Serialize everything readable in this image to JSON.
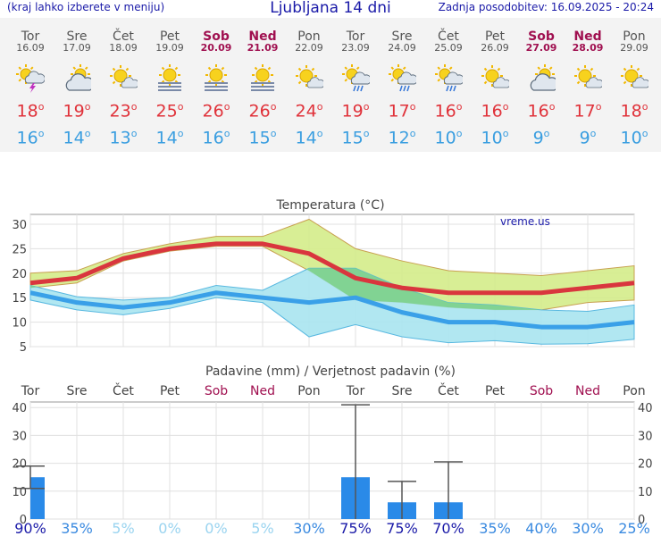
{
  "header": {
    "menu_note": "(kraj lahko izberete v meniju)",
    "title": "Ljubljana 14 dni",
    "updated": "Zadnja posodobitev: 16.09.2025 - 20:24"
  },
  "forecast": [
    {
      "day": "Tor",
      "date": "16.09",
      "weekend": false,
      "icon": "sun-cloud-storm-icon",
      "tmax": "18",
      "tmin": "16"
    },
    {
      "day": "Sre",
      "date": "17.09",
      "weekend": false,
      "icon": "cloudy-icon",
      "tmax": "19",
      "tmin": "14"
    },
    {
      "day": "Čet",
      "date": "18.09",
      "weekend": false,
      "icon": "partly-cloudy-icon",
      "tmax": "23",
      "tmin": "13"
    },
    {
      "day": "Pet",
      "date": "19.09",
      "weekend": false,
      "icon": "sun-fog-icon",
      "tmax": "25",
      "tmin": "14"
    },
    {
      "day": "Sob",
      "date": "20.09",
      "weekend": true,
      "icon": "sun-fog-icon",
      "tmax": "26",
      "tmin": "16"
    },
    {
      "day": "Ned",
      "date": "21.09",
      "weekend": true,
      "icon": "sun-fog-icon",
      "tmax": "26",
      "tmin": "15"
    },
    {
      "day": "Pon",
      "date": "22.09",
      "weekend": false,
      "icon": "partly-cloudy-icon",
      "tmax": "24",
      "tmin": "14"
    },
    {
      "day": "Tor",
      "date": "23.09",
      "weekend": false,
      "icon": "sun-cloud-rain-icon",
      "tmax": "19",
      "tmin": "15"
    },
    {
      "day": "Sre",
      "date": "24.09",
      "weekend": false,
      "icon": "sun-cloud-rain-icon",
      "tmax": "17",
      "tmin": "12"
    },
    {
      "day": "Čet",
      "date": "25.09",
      "weekend": false,
      "icon": "sun-cloud-rain-icon",
      "tmax": "16",
      "tmin": "10"
    },
    {
      "day": "Pet",
      "date": "26.09",
      "weekend": false,
      "icon": "partly-cloudy-icon",
      "tmax": "16",
      "tmin": "10"
    },
    {
      "day": "Sob",
      "date": "27.09",
      "weekend": true,
      "icon": "cloudy-icon",
      "tmax": "16",
      "tmin": "9"
    },
    {
      "day": "Ned",
      "date": "28.09",
      "weekend": true,
      "icon": "partly-cloudy-icon",
      "tmax": "17",
      "tmin": "9"
    },
    {
      "day": "Pon",
      "date": "29.09",
      "weekend": false,
      "icon": "partly-cloudy-icon",
      "tmax": "18",
      "tmin": "10"
    }
  ],
  "degree_symbol": "o",
  "colors": {
    "title_blue": "#1a1aa8",
    "tmax_red": "#e0323a",
    "tmin_blue": "#3a9ee0",
    "weekend": "#a01050",
    "max_band": "#d4ec8a",
    "min_band": "#a8e4f0",
    "overlap_band": "#7cd08a",
    "max_line": "#d9363e",
    "min_line": "#3aa0e8",
    "precip_bar": "#2a8ae8",
    "error_bar": "#555555"
  },
  "chart_data": [
    {
      "type": "area",
      "title": "Temperatura (°C)",
      "watermark": "vreme.us",
      "ylim": [
        5,
        32
      ],
      "yticks": [
        5,
        10,
        15,
        20,
        25,
        30
      ],
      "grid": true,
      "x": [
        "16.09",
        "17.09",
        "18.09",
        "19.09",
        "20.09",
        "21.09",
        "22.09",
        "23.09",
        "24.09",
        "25.09",
        "26.09",
        "27.09",
        "28.09",
        "29.09"
      ],
      "series": [
        {
          "role": "max",
          "values": [
            18,
            19,
            23,
            25,
            26,
            26,
            24,
            19,
            17,
            16,
            16,
            16,
            17,
            18
          ],
          "upper": [
            20,
            20.5,
            24,
            26,
            27.5,
            27.5,
            31,
            25,
            22.5,
            20.5,
            20,
            19.5,
            20.5,
            21.5
          ],
          "lower": [
            17,
            18,
            22.5,
            24.5,
            25.5,
            25.5,
            20.5,
            14.5,
            14,
            13,
            12.5,
            12.5,
            14,
            14.5
          ]
        },
        {
          "role": "min",
          "values": [
            16,
            14,
            13,
            14,
            16,
            15,
            14,
            15,
            12,
            10,
            10,
            9,
            9,
            10
          ],
          "upper": [
            17.5,
            15.2,
            14.5,
            15,
            17.5,
            16.5,
            21,
            21,
            17,
            14,
            13.5,
            12.5,
            12.2,
            13.5
          ],
          "lower": [
            14.5,
            12.5,
            11.5,
            12.8,
            15,
            14,
            7,
            9.5,
            7,
            5.8,
            6.2,
            5.5,
            5.6,
            6.5
          ]
        }
      ]
    },
    {
      "type": "bar",
      "title": "Padavine (mm) / Verjetnost padavin (%)",
      "ylim": [
        0,
        42
      ],
      "yticks": [
        0,
        10,
        20,
        30,
        40
      ],
      "grid": true,
      "categories": [
        "Tor",
        "Sre",
        "Čet",
        "Pet",
        "Sob",
        "Ned",
        "Pon",
        "Tor",
        "Sre",
        "Čet",
        "Pet",
        "Sob",
        "Ned",
        "Pon"
      ],
      "weekend": [
        false,
        false,
        false,
        false,
        true,
        true,
        false,
        false,
        false,
        false,
        false,
        true,
        true,
        false
      ],
      "values": [
        15,
        0,
        0,
        0,
        0,
        0,
        0,
        15,
        6,
        6,
        0,
        0,
        0,
        0
      ],
      "error_low": [
        11,
        0,
        0,
        0,
        0,
        0,
        0,
        0,
        0,
        0,
        0,
        0,
        0,
        0
      ],
      "error_high": [
        19,
        0,
        0,
        0,
        0,
        0,
        0,
        41,
        13.5,
        20.5,
        0,
        0,
        0,
        0
      ],
      "probability": [
        "90%",
        "35%",
        "5%",
        "0%",
        "0%",
        "5%",
        "30%",
        "75%",
        "75%",
        "70%",
        "35%",
        "40%",
        "30%",
        "25%"
      ],
      "probability_values": [
        90,
        35,
        5,
        0,
        0,
        5,
        30,
        75,
        75,
        70,
        35,
        40,
        30,
        25
      ]
    }
  ]
}
